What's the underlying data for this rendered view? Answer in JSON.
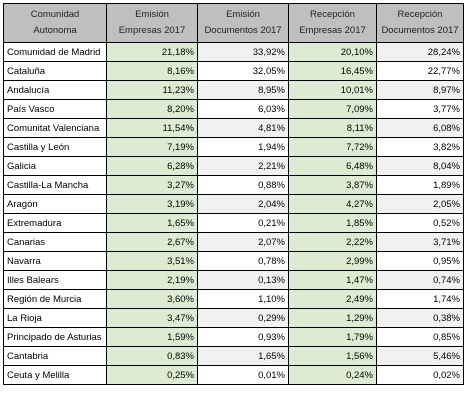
{
  "headers": [
    [
      "Comunidad",
      "Autonoma"
    ],
    [
      "Emisión",
      "Empresas 2017"
    ],
    [
      "Emisión",
      "Documentos 2017"
    ],
    [
      "Recepción",
      "Empresas 2017"
    ],
    [
      "Recepción",
      "Documentos 2017"
    ]
  ],
  "rows": [
    [
      "Comunidad de Madrid",
      "21,18%",
      "33,92%",
      "20,10%",
      "28,24%"
    ],
    [
      "Cataluña",
      "8,16%",
      "32,05%",
      "16,45%",
      "22,77%"
    ],
    [
      "Andalucía",
      "11,23%",
      "8,95%",
      "10,01%",
      "8,97%"
    ],
    [
      "País Vasco",
      "8,20%",
      "6,03%",
      "7,09%",
      "3,77%"
    ],
    [
      "Comunitat Valenciana",
      "11,54%",
      "4,81%",
      "8,11%",
      "6,08%"
    ],
    [
      "Castilla y León",
      "7,19%",
      "1,94%",
      "7,72%",
      "3,82%"
    ],
    [
      "Galicia",
      "6,28%",
      "2,21%",
      "6,48%",
      "8,04%"
    ],
    [
      "Castilla-La Mancha",
      "3,27%",
      "0,88%",
      "3,87%",
      "1,89%"
    ],
    [
      "Aragón",
      "3,19%",
      "2,04%",
      "4,27%",
      "2,05%"
    ],
    [
      "Extremadura",
      "1,65%",
      "0,21%",
      "1,85%",
      "0,52%"
    ],
    [
      "Canarias",
      "2,67%",
      "2,07%",
      "2,22%",
      "3,71%"
    ],
    [
      "Navarra",
      "3,51%",
      "0,78%",
      "2,99%",
      "0,95%"
    ],
    [
      "Illes Balears",
      "2,19%",
      "0,13%",
      "1,47%",
      "0,74%"
    ],
    [
      "Región de Murcia",
      "3,60%",
      "1,10%",
      "2,49%",
      "1,74%"
    ],
    [
      "La Rioja",
      "3,47%",
      "0,29%",
      "1,29%",
      "0,38%"
    ],
    [
      "Principado de Asturias",
      "1,59%",
      "0,93%",
      "1,79%",
      "0,85%"
    ],
    [
      "Cantabria",
      "0,83%",
      "1,65%",
      "1,56%",
      "5,46%"
    ],
    [
      "Ceuta y Melilla",
      "0,25%",
      "0,01%",
      "0,24%",
      "0,02%"
    ]
  ],
  "colors": {
    "header_bg": "#bfbfbf",
    "empresas_col_bg": "#dcecd2",
    "alt_row_bg": "#f1f1f1",
    "border": "#000000"
  }
}
